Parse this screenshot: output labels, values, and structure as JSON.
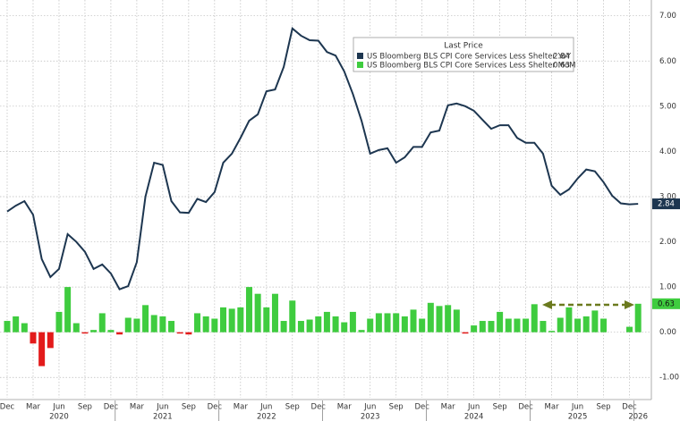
{
  "chart_data": {
    "type": "line-bar",
    "categories": [
      "Dec",
      null,
      null,
      "Mar",
      null,
      null,
      "Jun",
      null,
      null,
      "Sep",
      null,
      null,
      "Dec",
      null,
      null,
      "Mar",
      null,
      null,
      "Jun",
      null,
      null,
      "Sep",
      null,
      null,
      "Dec",
      null,
      null,
      "Mar",
      null,
      null,
      "Jun",
      null,
      null,
      "Sep",
      null,
      null,
      "Dec",
      null,
      null,
      "Mar",
      null,
      null,
      "Jun",
      null,
      null,
      "Sep",
      null,
      null,
      "Dec",
      null,
      null,
      "Mar",
      null,
      null,
      "Jun",
      null,
      null,
      "Sep",
      null,
      null,
      "Dec",
      null,
      null,
      "Mar",
      null,
      null,
      "Jun",
      null,
      null,
      "Sep",
      null,
      null,
      "Dec",
      null
    ],
    "year_labels": [
      null,
      null,
      null,
      null,
      null,
      null,
      "2020",
      null,
      null,
      null,
      null,
      null,
      null,
      null,
      null,
      null,
      null,
      null,
      "2021",
      null,
      null,
      null,
      null,
      null,
      null,
      null,
      null,
      null,
      null,
      null,
      "2022",
      null,
      null,
      null,
      null,
      null,
      null,
      null,
      null,
      null,
      null,
      null,
      "2023",
      null,
      null,
      null,
      null,
      null,
      null,
      null,
      null,
      null,
      null,
      null,
      "2024",
      null,
      null,
      null,
      null,
      null,
      null,
      null,
      null,
      null,
      null,
      null,
      "2025",
      null,
      null,
      null,
      null,
      null,
      null,
      "2026"
    ],
    "legend_title": "Last Price",
    "series": [
      {
        "name": "US Bloomberg BLS CPI Core Services Less Shelter YoY",
        "kind": "line",
        "color": "#1d3650",
        "values": [
          2.67,
          2.8,
          2.9,
          2.6,
          1.62,
          1.22,
          1.4,
          2.17,
          2.0,
          1.78,
          1.4,
          1.5,
          1.3,
          0.95,
          1.02,
          1.55,
          3.0,
          3.75,
          3.7,
          2.9,
          2.65,
          2.64,
          2.95,
          2.88,
          3.1,
          3.75,
          3.95,
          4.3,
          4.68,
          4.82,
          5.33,
          5.37,
          5.87,
          6.72,
          6.56,
          6.46,
          6.45,
          6.2,
          6.12,
          5.77,
          5.27,
          4.68,
          3.95,
          4.03,
          4.07,
          3.75,
          3.87,
          4.1,
          4.1,
          4.42,
          4.46,
          5.02,
          5.06,
          5.0,
          4.9,
          4.7,
          4.5,
          4.58,
          4.58,
          4.3,
          4.19,
          4.19,
          3.95,
          3.24,
          3.04,
          3.16,
          3.4,
          3.6,
          3.56,
          3.32,
          3.02,
          2.85,
          2.83,
          2.84
        ]
      },
      {
        "name": "US Bloomberg BLS CPI Core Services Less Shelter MoM",
        "kind": "bar",
        "color": "#3fcc3f",
        "negative_color": "#e31b1b",
        "values": [
          0.25,
          0.35,
          0.2,
          -0.25,
          -0.75,
          -0.35,
          0.45,
          1.0,
          0.2,
          -0.03,
          0.05,
          0.42,
          0.05,
          -0.05,
          0.32,
          0.3,
          0.6,
          0.38,
          0.35,
          0.25,
          -0.03,
          -0.05,
          0.42,
          0.35,
          0.3,
          0.55,
          0.52,
          0.55,
          1.0,
          0.85,
          0.55,
          0.85,
          0.25,
          0.7,
          0.25,
          0.28,
          0.35,
          0.45,
          0.35,
          0.22,
          0.45,
          0.05,
          0.3,
          0.42,
          0.42,
          0.42,
          0.35,
          0.5,
          0.3,
          0.65,
          0.58,
          0.6,
          0.5,
          -0.03,
          0.15,
          0.25,
          0.25,
          0.45,
          0.3,
          0.3,
          0.3,
          0.62,
          0.25,
          0.03,
          0.32,
          0.55,
          0.3,
          0.35,
          0.48,
          0.3,
          null,
          null,
          0.12,
          0.63
        ]
      }
    ],
    "ylim": [
      -1.45,
      7.35
    ],
    "yticks": [
      {
        "value": -1,
        "label": "-1.00"
      },
      {
        "value": 0,
        "label": "0.00"
      },
      {
        "value": 1,
        "label": "1.00"
      },
      {
        "value": 2,
        "label": "2.00"
      },
      {
        "value": 3,
        "label": "3.00"
      },
      {
        "value": 4,
        "label": "4.00"
      },
      {
        "value": 5,
        "label": "5.00"
      },
      {
        "value": 6,
        "label": "6.00"
      },
      {
        "value": 7,
        "label": "7.00"
      }
    ],
    "grid": true
  }
}
